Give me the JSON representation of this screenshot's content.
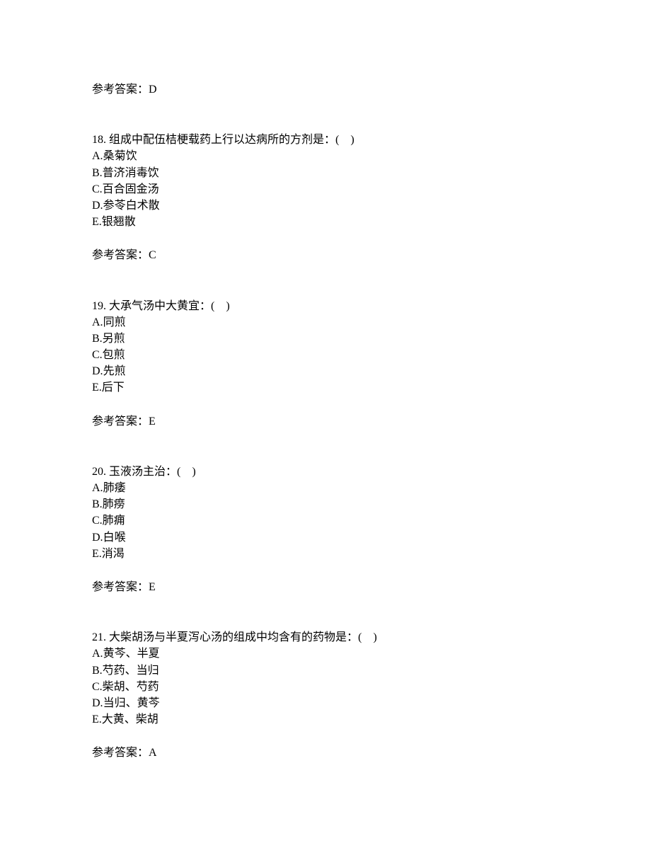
{
  "answer_prefix_label": "参考答案：",
  "prev_answer": {
    "value": "D"
  },
  "questions": [
    {
      "number": "18.",
      "stem": "组成中配伍桔梗载药上行以达病所的方剂是：(　)",
      "options": [
        {
          "letter": "A.",
          "text": "桑菊饮"
        },
        {
          "letter": "B.",
          "text": "普济消毒饮"
        },
        {
          "letter": "C.",
          "text": "百合固金汤"
        },
        {
          "letter": "D.",
          "text": "参苓白术散"
        },
        {
          "letter": "E.",
          "text": "银翘散"
        }
      ],
      "answer": "C"
    },
    {
      "number": "19.",
      "stem": "大承气汤中大黄宜：(　)",
      "options": [
        {
          "letter": "A.",
          "text": "同煎"
        },
        {
          "letter": "B.",
          "text": "另煎"
        },
        {
          "letter": "C.",
          "text": "包煎"
        },
        {
          "letter": "D.",
          "text": "先煎"
        },
        {
          "letter": "E.",
          "text": "后下"
        }
      ],
      "answer": "E"
    },
    {
      "number": "20.",
      "stem": "玉液汤主治：(　)",
      "options": [
        {
          "letter": "A.",
          "text": "肺痿"
        },
        {
          "letter": "B.",
          "text": "肺痨"
        },
        {
          "letter": "C.",
          "text": "肺痈"
        },
        {
          "letter": "D.",
          "text": "白喉"
        },
        {
          "letter": "E.",
          "text": "消渴"
        }
      ],
      "answer": "E"
    },
    {
      "number": "21.",
      "stem": "大柴胡汤与半夏泻心汤的组成中均含有的药物是：(　)",
      "options": [
        {
          "letter": "A.",
          "text": "黄芩、半夏"
        },
        {
          "letter": "B.",
          "text": "芍药、当归"
        },
        {
          "letter": "C.",
          "text": "柴胡、芍药"
        },
        {
          "letter": "D.",
          "text": "当归、黄芩"
        },
        {
          "letter": "E.",
          "text": "大黄、柴胡"
        }
      ],
      "answer": "A"
    }
  ]
}
